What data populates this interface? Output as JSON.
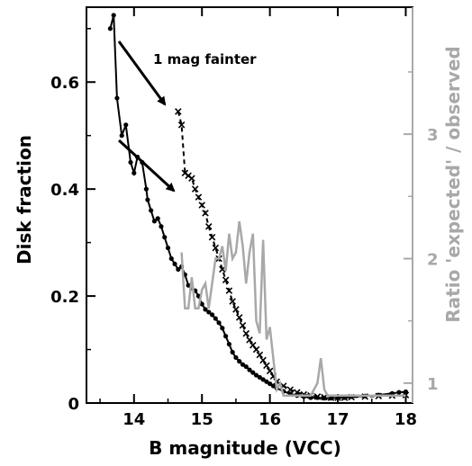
{
  "chart_data": {
    "type": "line",
    "xlabel": "B magnitude (VCC)",
    "ylabel": "Disk fraction",
    "y2label": "Ratio 'expected' / observed",
    "xlim": [
      13.3,
      18.1
    ],
    "ylim": [
      0,
      0.74
    ],
    "y2lim": [
      0.84,
      4.02
    ],
    "xticks": [
      14,
      15,
      16,
      17,
      18
    ],
    "xtick_labels": [
      "14",
      "15",
      "16",
      "17",
      "18"
    ],
    "yticks": [
      0,
      0.2,
      0.4,
      0.6
    ],
    "ytick_labels": [
      "0",
      "0.2",
      "0.4",
      "0.6"
    ],
    "y2ticks": [
      1,
      2,
      3
    ],
    "y2tick_labels": [
      "1",
      "2",
      "3"
    ],
    "colors": {
      "disk": "#000000",
      "ratio": "#a8a8a8"
    },
    "annotation": "1 mag fainter",
    "series": [
      {
        "style": "solid-dots",
        "axis": "left",
        "x": [
          13.65,
          13.7,
          13.75,
          13.82,
          13.88,
          13.95,
          14.0,
          14.05,
          14.12,
          14.18,
          14.2,
          14.25,
          14.3,
          14.35,
          14.4,
          14.45,
          14.5,
          14.55,
          14.6,
          14.65,
          14.7,
          14.75,
          14.8,
          14.85,
          14.9,
          14.95,
          15.0,
          15.05,
          15.1,
          15.15,
          15.2,
          15.25,
          15.3,
          15.35,
          15.4,
          15.45,
          15.5,
          15.55,
          15.6,
          15.65,
          15.7,
          15.75,
          15.8,
          15.85,
          15.9,
          15.95,
          16.0,
          16.05,
          16.1,
          16.2,
          16.3,
          16.4,
          16.5,
          16.6,
          16.7,
          16.8,
          16.9,
          17.0,
          17.1,
          17.2,
          17.4,
          17.6,
          17.8,
          17.9,
          18.0
        ],
        "y": [
          0.7,
          0.725,
          0.57,
          0.5,
          0.52,
          0.45,
          0.43,
          0.46,
          0.45,
          0.4,
          0.38,
          0.36,
          0.34,
          0.345,
          0.33,
          0.31,
          0.29,
          0.27,
          0.26,
          0.25,
          0.255,
          0.24,
          0.22,
          0.215,
          0.21,
          0.2,
          0.185,
          0.175,
          0.17,
          0.165,
          0.158,
          0.15,
          0.14,
          0.125,
          0.11,
          0.095,
          0.085,
          0.078,
          0.072,
          0.068,
          0.062,
          0.057,
          0.052,
          0.048,
          0.044,
          0.04,
          0.036,
          0.032,
          0.028,
          0.022,
          0.017,
          0.014,
          0.012,
          0.01,
          0.01,
          0.009,
          0.009,
          0.01,
          0.01,
          0.012,
          0.013,
          0.015,
          0.018,
          0.02,
          0.021
        ]
      },
      {
        "style": "dashed-crosses",
        "axis": "left",
        "x": [
          14.65,
          14.7,
          14.75,
          14.8,
          14.85,
          14.9,
          14.95,
          15.0,
          15.05,
          15.1,
          15.15,
          15.2,
          15.25,
          15.3,
          15.35,
          15.4,
          15.45,
          15.5,
          15.55,
          15.6,
          15.65,
          15.7,
          15.75,
          15.8,
          15.85,
          15.9,
          15.95,
          16.0,
          16.05,
          16.1,
          16.2,
          16.3,
          16.4,
          16.5,
          16.6,
          16.7,
          16.8,
          16.9,
          17.0,
          17.1,
          17.2,
          17.4,
          17.6,
          17.8,
          18.0
        ],
        "y": [
          0.545,
          0.52,
          0.43,
          0.425,
          0.42,
          0.4,
          0.385,
          0.37,
          0.355,
          0.33,
          0.31,
          0.29,
          0.27,
          0.25,
          0.23,
          0.21,
          0.19,
          0.175,
          0.16,
          0.145,
          0.13,
          0.118,
          0.108,
          0.1,
          0.09,
          0.08,
          0.07,
          0.06,
          0.05,
          0.04,
          0.032,
          0.025,
          0.02,
          0.016,
          0.014,
          0.012,
          0.011,
          0.01,
          0.01,
          0.01,
          0.011,
          0.012,
          0.013,
          0.014,
          0.015
        ]
      },
      {
        "style": "gray-line",
        "axis": "right",
        "x": [
          14.7,
          14.75,
          14.8,
          14.85,
          14.9,
          14.95,
          15.0,
          15.05,
          15.1,
          15.15,
          15.2,
          15.25,
          15.3,
          15.35,
          15.4,
          15.45,
          15.5,
          15.55,
          15.6,
          15.65,
          15.7,
          15.75,
          15.8,
          15.85,
          15.9,
          15.95,
          16.0,
          16.05,
          16.1,
          16.15,
          16.2,
          16.25,
          16.3,
          16.35,
          16.4,
          16.5,
          16.6,
          16.7,
          16.75,
          16.8,
          16.85,
          16.9,
          17.0,
          17.2,
          17.5,
          17.8,
          18.0
        ],
        "y": [
          2.05,
          1.6,
          1.6,
          1.85,
          1.6,
          1.6,
          1.75,
          1.8,
          1.6,
          1.8,
          2.0,
          2.0,
          2.1,
          1.9,
          2.2,
          2.0,
          2.05,
          2.3,
          2.1,
          1.8,
          2.05,
          2.2,
          1.5,
          1.4,
          2.15,
          1.35,
          1.45,
          1.2,
          0.95,
          1.0,
          0.9,
          0.9,
          0.9,
          0.9,
          0.9,
          0.9,
          0.9,
          1.0,
          1.2,
          0.95,
          0.9,
          0.9,
          0.9,
          0.9,
          0.9,
          0.9,
          0.9
        ]
      }
    ]
  }
}
